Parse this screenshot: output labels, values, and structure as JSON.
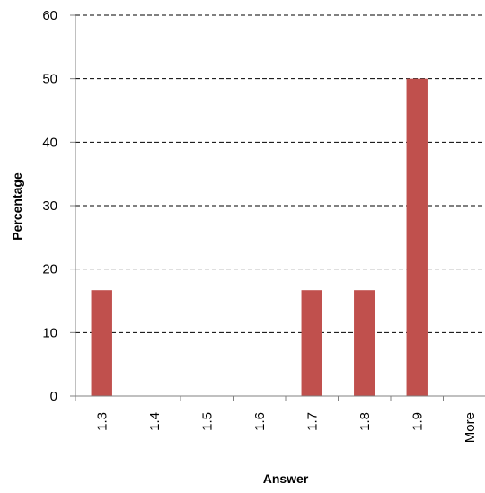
{
  "chart_data": {
    "type": "bar",
    "title": "",
    "xlabel": "Answer",
    "ylabel": "Percentage",
    "categories": [
      "1.3",
      "1.4",
      "1.5",
      "1.6",
      "1.7",
      "1.8",
      "1.9",
      "More"
    ],
    "values": [
      16.67,
      0,
      0,
      0,
      16.67,
      16.67,
      50,
      0
    ],
    "ylim": [
      0,
      60
    ],
    "yticks": [
      0,
      10,
      20,
      30,
      40,
      50,
      60
    ],
    "grid": true,
    "grid_style": "dashed",
    "legend": "none",
    "bar_color": "#c0504d"
  }
}
